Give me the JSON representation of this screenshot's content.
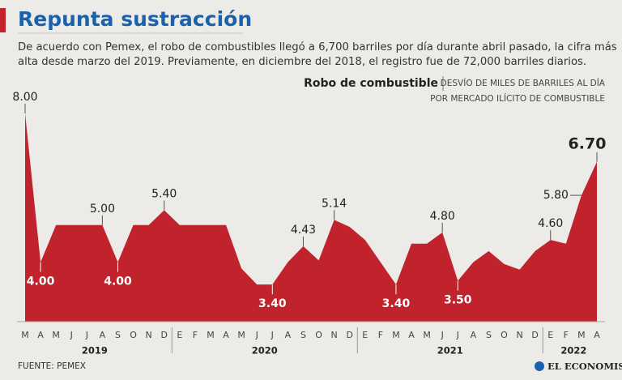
{
  "header": {
    "title": "Repunta sustracción",
    "subtitle": [
      "De acuerdo con Pemex, el robo de combustibles llegó a 6,700 barriles por día durante abril pasado, la cifra más",
      "alta desde marzo del 2019. Previamente, en diciembre del 2018, el registro fue de 72,000 barriles diarios."
    ]
  },
  "chart_data": {
    "type": "area",
    "title": "Robo de combustible",
    "unit_note": [
      "DESVÍO DE MILES DE BARRILES AL DÍA",
      "POR MERCADO ILÍCITO DE COMBUSTIBLE"
    ],
    "categories": [
      "M",
      "A",
      "M",
      "J",
      "J",
      "A",
      "S",
      "O",
      "N",
      "D",
      "E",
      "F",
      "M",
      "A",
      "M",
      "J",
      "J",
      "A",
      "S",
      "O",
      "N",
      "D",
      "E",
      "F",
      "M",
      "A",
      "M",
      "J",
      "J",
      "A",
      "S",
      "O",
      "N",
      "D",
      "E",
      "F",
      "M",
      "A"
    ],
    "x_groups": [
      "2019",
      "2020",
      "2021",
      "2022"
    ],
    "values": [
      8.0,
      4.0,
      5.0,
      5.0,
      5.0,
      5.0,
      4.0,
      5.0,
      5.0,
      5.4,
      5.0,
      5.0,
      5.0,
      5.0,
      3.83,
      3.4,
      3.4,
      4.0,
      4.43,
      4.05,
      5.14,
      4.95,
      4.6,
      4.0,
      3.4,
      4.5,
      4.5,
      4.8,
      3.5,
      4.0,
      4.3,
      3.95,
      3.8,
      4.3,
      4.6,
      4.5,
      5.8,
      6.7
    ],
    "value_labels": [
      "8.00",
      "4.00",
      null,
      null,
      null,
      "5.00",
      "4.00",
      null,
      null,
      "5.40",
      null,
      null,
      null,
      null,
      null,
      null,
      "3.40",
      null,
      "4.43",
      null,
      "5.14",
      null,
      null,
      null,
      "3.40",
      null,
      null,
      "4.80",
      "3.50",
      null,
      null,
      null,
      null,
      null,
      "4.60",
      null,
      "5.80",
      "6.70"
    ],
    "color": "#c0232b",
    "ylim": [
      2.4,
      8.2
    ]
  },
  "footer": {
    "source": "FUENTE: PEMEX",
    "brand": "EL ECONOMISTA"
  }
}
